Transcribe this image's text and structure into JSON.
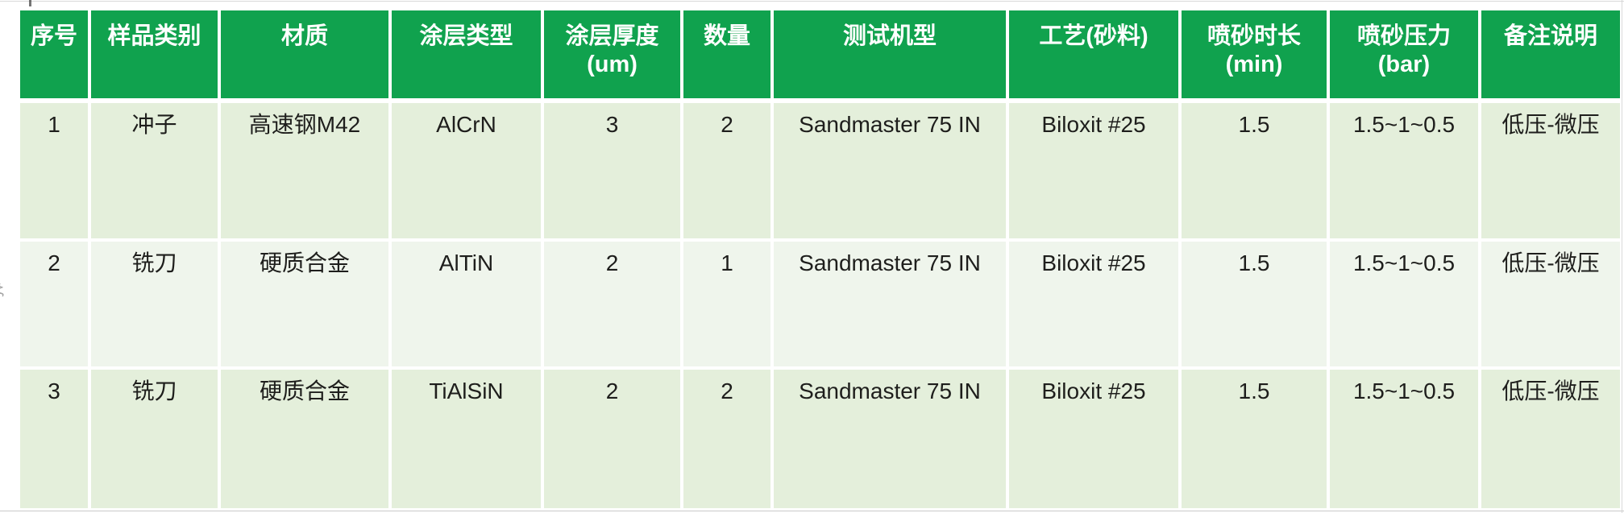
{
  "colors": {
    "header_bg": "#10a24e",
    "header_text": "#ffffff",
    "row_band_a": "#e4efdb",
    "row_band_b": "#eff5ec",
    "body_text": "#1e1e1c",
    "page_bg": "#ffffff"
  },
  "table": {
    "columns": [
      {
        "label": "序号",
        "sublabel": ""
      },
      {
        "label": "样品类别",
        "sublabel": ""
      },
      {
        "label": "材质",
        "sublabel": ""
      },
      {
        "label": "涂层类型",
        "sublabel": ""
      },
      {
        "label": "涂层厚度",
        "sublabel": "(um)"
      },
      {
        "label": "数量",
        "sublabel": ""
      },
      {
        "label": "测试机型",
        "sublabel": ""
      },
      {
        "label": "工艺(砂料)",
        "sublabel": ""
      },
      {
        "label": "喷砂时长",
        "sublabel": "(min)"
      },
      {
        "label": "喷砂压力",
        "sublabel": "(bar)"
      },
      {
        "label": "备注说明",
        "sublabel": ""
      }
    ],
    "rows": [
      [
        "1",
        "冲子",
        "高速钢M42",
        "AlCrN",
        "3",
        "2",
        "Sandmaster 75 IN",
        "Biloxit #25",
        "1.5",
        "1.5~1~0.5",
        "低压-微压"
      ],
      [
        "2",
        "铣刀",
        "硬质合金",
        "AlTiN",
        "2",
        "1",
        "Sandmaster 75 IN",
        "Biloxit #25",
        "1.5",
        "1.5~1~0.5",
        "低压-微压"
      ],
      [
        "3",
        "铣刀",
        "硬质合金",
        "TiAlSiN",
        "2",
        "2",
        "Sandmaster 75 IN",
        "Biloxit #25",
        "1.5",
        "1.5~1~0.5",
        "低压-微压"
      ]
    ]
  },
  "artifacts": {
    "left_edge_mark": "ξ"
  }
}
